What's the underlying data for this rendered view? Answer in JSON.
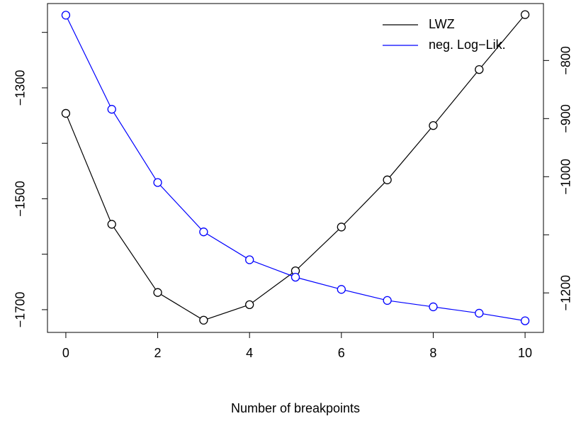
{
  "chart_data": {
    "type": "line",
    "xlabel": "Number of breakpoints",
    "x": [
      0,
      1,
      2,
      3,
      4,
      5,
      6,
      7,
      8,
      9,
      10
    ],
    "series": [
      {
        "name": "LWZ",
        "color": "#000000",
        "axis": "y",
        "values": [
          -1346,
          -1546,
          -1669,
          -1719,
          -1691,
          -1630,
          -1551,
          -1466,
          -1368,
          -1267,
          -1168
        ]
      },
      {
        "name": "neg. Log−Lik.",
        "color": "#0000ff",
        "axis": "y2",
        "values": [
          -722,
          -884,
          -1010,
          -1095,
          -1143,
          -1173,
          -1194,
          -1213,
          -1224,
          -1235,
          -1248
        ]
      }
    ],
    "xlim": [
      -0.4,
      10.4
    ],
    "xticks": [
      0,
      2,
      4,
      6,
      8,
      10
    ],
    "ylim": [
      -1741,
      -1148
    ],
    "yticks": [
      {
        "value": -1300,
        "label": "−1300"
      },
      {
        "value": -1500,
        "label": "−1500"
      },
      {
        "value": -1700,
        "label": "−1700"
      }
    ],
    "yminorticks": [
      -1200,
      -1400,
      -1600
    ],
    "y2lim": [
      -1268,
      -702
    ],
    "y2ticks": [
      {
        "value": -800,
        "label": "−800"
      },
      {
        "value": -900,
        "label": "−900"
      },
      {
        "value": -1000,
        "label": "−1000"
      },
      {
        "value": -1200,
        "label": "−1200"
      }
    ],
    "y2minorticks": [
      -1100
    ],
    "legend": "top-right"
  }
}
